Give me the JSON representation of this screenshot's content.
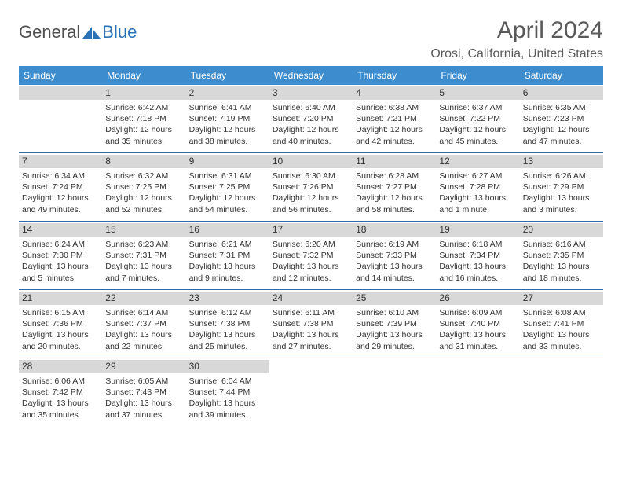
{
  "brand": {
    "text_general": "General",
    "text_blue": "Blue",
    "logo_color": "#2a72b5"
  },
  "title": "April 2024",
  "location": "Orosi, California, United States",
  "colors": {
    "header_bg": "#3c8cce",
    "header_text": "#ffffff",
    "daybar_bg": "#d8d8d8",
    "row_divider": "#2a6aa8",
    "text": "#333333",
    "title_text": "#5a5a5a"
  },
  "days_of_week": [
    "Sunday",
    "Monday",
    "Tuesday",
    "Wednesday",
    "Thursday",
    "Friday",
    "Saturday"
  ],
  "weeks": [
    [
      null,
      {
        "n": "1",
        "sr": "Sunrise: 6:42 AM",
        "ss": "Sunset: 7:18 PM",
        "dl": "Daylight: 12 hours and 35 minutes."
      },
      {
        "n": "2",
        "sr": "Sunrise: 6:41 AM",
        "ss": "Sunset: 7:19 PM",
        "dl": "Daylight: 12 hours and 38 minutes."
      },
      {
        "n": "3",
        "sr": "Sunrise: 6:40 AM",
        "ss": "Sunset: 7:20 PM",
        "dl": "Daylight: 12 hours and 40 minutes."
      },
      {
        "n": "4",
        "sr": "Sunrise: 6:38 AM",
        "ss": "Sunset: 7:21 PM",
        "dl": "Daylight: 12 hours and 42 minutes."
      },
      {
        "n": "5",
        "sr": "Sunrise: 6:37 AM",
        "ss": "Sunset: 7:22 PM",
        "dl": "Daylight: 12 hours and 45 minutes."
      },
      {
        "n": "6",
        "sr": "Sunrise: 6:35 AM",
        "ss": "Sunset: 7:23 PM",
        "dl": "Daylight: 12 hours and 47 minutes."
      }
    ],
    [
      {
        "n": "7",
        "sr": "Sunrise: 6:34 AM",
        "ss": "Sunset: 7:24 PM",
        "dl": "Daylight: 12 hours and 49 minutes."
      },
      {
        "n": "8",
        "sr": "Sunrise: 6:32 AM",
        "ss": "Sunset: 7:25 PM",
        "dl": "Daylight: 12 hours and 52 minutes."
      },
      {
        "n": "9",
        "sr": "Sunrise: 6:31 AM",
        "ss": "Sunset: 7:25 PM",
        "dl": "Daylight: 12 hours and 54 minutes."
      },
      {
        "n": "10",
        "sr": "Sunrise: 6:30 AM",
        "ss": "Sunset: 7:26 PM",
        "dl": "Daylight: 12 hours and 56 minutes."
      },
      {
        "n": "11",
        "sr": "Sunrise: 6:28 AM",
        "ss": "Sunset: 7:27 PM",
        "dl": "Daylight: 12 hours and 58 minutes."
      },
      {
        "n": "12",
        "sr": "Sunrise: 6:27 AM",
        "ss": "Sunset: 7:28 PM",
        "dl": "Daylight: 13 hours and 1 minute."
      },
      {
        "n": "13",
        "sr": "Sunrise: 6:26 AM",
        "ss": "Sunset: 7:29 PM",
        "dl": "Daylight: 13 hours and 3 minutes."
      }
    ],
    [
      {
        "n": "14",
        "sr": "Sunrise: 6:24 AM",
        "ss": "Sunset: 7:30 PM",
        "dl": "Daylight: 13 hours and 5 minutes."
      },
      {
        "n": "15",
        "sr": "Sunrise: 6:23 AM",
        "ss": "Sunset: 7:31 PM",
        "dl": "Daylight: 13 hours and 7 minutes."
      },
      {
        "n": "16",
        "sr": "Sunrise: 6:21 AM",
        "ss": "Sunset: 7:31 PM",
        "dl": "Daylight: 13 hours and 9 minutes."
      },
      {
        "n": "17",
        "sr": "Sunrise: 6:20 AM",
        "ss": "Sunset: 7:32 PM",
        "dl": "Daylight: 13 hours and 12 minutes."
      },
      {
        "n": "18",
        "sr": "Sunrise: 6:19 AM",
        "ss": "Sunset: 7:33 PM",
        "dl": "Daylight: 13 hours and 14 minutes."
      },
      {
        "n": "19",
        "sr": "Sunrise: 6:18 AM",
        "ss": "Sunset: 7:34 PM",
        "dl": "Daylight: 13 hours and 16 minutes."
      },
      {
        "n": "20",
        "sr": "Sunrise: 6:16 AM",
        "ss": "Sunset: 7:35 PM",
        "dl": "Daylight: 13 hours and 18 minutes."
      }
    ],
    [
      {
        "n": "21",
        "sr": "Sunrise: 6:15 AM",
        "ss": "Sunset: 7:36 PM",
        "dl": "Daylight: 13 hours and 20 minutes."
      },
      {
        "n": "22",
        "sr": "Sunrise: 6:14 AM",
        "ss": "Sunset: 7:37 PM",
        "dl": "Daylight: 13 hours and 22 minutes."
      },
      {
        "n": "23",
        "sr": "Sunrise: 6:12 AM",
        "ss": "Sunset: 7:38 PM",
        "dl": "Daylight: 13 hours and 25 minutes."
      },
      {
        "n": "24",
        "sr": "Sunrise: 6:11 AM",
        "ss": "Sunset: 7:38 PM",
        "dl": "Daylight: 13 hours and 27 minutes."
      },
      {
        "n": "25",
        "sr": "Sunrise: 6:10 AM",
        "ss": "Sunset: 7:39 PM",
        "dl": "Daylight: 13 hours and 29 minutes."
      },
      {
        "n": "26",
        "sr": "Sunrise: 6:09 AM",
        "ss": "Sunset: 7:40 PM",
        "dl": "Daylight: 13 hours and 31 minutes."
      },
      {
        "n": "27",
        "sr": "Sunrise: 6:08 AM",
        "ss": "Sunset: 7:41 PM",
        "dl": "Daylight: 13 hours and 33 minutes."
      }
    ],
    [
      {
        "n": "28",
        "sr": "Sunrise: 6:06 AM",
        "ss": "Sunset: 7:42 PM",
        "dl": "Daylight: 13 hours and 35 minutes."
      },
      {
        "n": "29",
        "sr": "Sunrise: 6:05 AM",
        "ss": "Sunset: 7:43 PM",
        "dl": "Daylight: 13 hours and 37 minutes."
      },
      {
        "n": "30",
        "sr": "Sunrise: 6:04 AM",
        "ss": "Sunset: 7:44 PM",
        "dl": "Daylight: 13 hours and 39 minutes."
      },
      null,
      null,
      null,
      null
    ]
  ]
}
